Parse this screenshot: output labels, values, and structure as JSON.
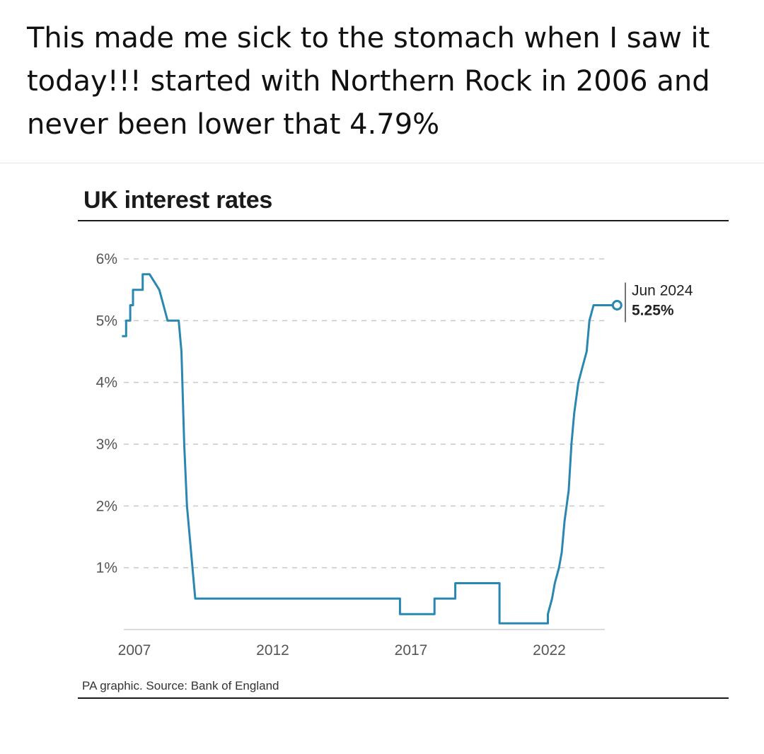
{
  "post": {
    "text": "This made me sick to the stomach when I saw it today!!! started with Northern Rock in 2006 and never been lower that 4.79%"
  },
  "chart_data": {
    "type": "line",
    "title": "UK interest rates",
    "source": "PA graphic. Source: Bank of England",
    "xlabel": "",
    "ylabel": "",
    "xlim": [
      2006.5,
      2024.9
    ],
    "ylim": [
      0,
      6
    ],
    "x_ticks": [
      {
        "value": 2007,
        "label": "2007"
      },
      {
        "value": 2012,
        "label": "2012"
      },
      {
        "value": 2017,
        "label": "2017"
      },
      {
        "value": 2022,
        "label": "2022"
      }
    ],
    "y_ticks": [
      {
        "value": 1,
        "label": "1%"
      },
      {
        "value": 2,
        "label": "2%"
      },
      {
        "value": 3,
        "label": "3%"
      },
      {
        "value": 4,
        "label": "4%"
      },
      {
        "value": 5,
        "label": "5%"
      },
      {
        "value": 6,
        "label": "6%"
      }
    ],
    "grid": "horizontal-dashed",
    "line_color": "#2a87b2",
    "series": [
      {
        "name": "",
        "points": [
          [
            2006.55,
            4.75
          ],
          [
            2006.7,
            4.75
          ],
          [
            2006.7,
            5.0
          ],
          [
            2006.85,
            5.0
          ],
          [
            2006.85,
            5.25
          ],
          [
            2006.95,
            5.25
          ],
          [
            2006.95,
            5.5
          ],
          [
            2007.3,
            5.5
          ],
          [
            2007.3,
            5.75
          ],
          [
            2007.55,
            5.75
          ],
          [
            2007.9,
            5.5
          ],
          [
            2008.05,
            5.25
          ],
          [
            2008.2,
            5.0
          ],
          [
            2008.6,
            5.0
          ],
          [
            2008.7,
            4.5
          ],
          [
            2008.8,
            3.0
          ],
          [
            2008.9,
            2.0
          ],
          [
            2009.0,
            1.5
          ],
          [
            2009.1,
            1.0
          ],
          [
            2009.2,
            0.5
          ],
          [
            2016.6,
            0.5
          ],
          [
            2016.6,
            0.25
          ],
          [
            2017.85,
            0.25
          ],
          [
            2017.85,
            0.5
          ],
          [
            2018.6,
            0.5
          ],
          [
            2018.6,
            0.75
          ],
          [
            2020.2,
            0.75
          ],
          [
            2020.2,
            0.1
          ],
          [
            2021.95,
            0.1
          ],
          [
            2021.95,
            0.25
          ],
          [
            2022.1,
            0.5
          ],
          [
            2022.2,
            0.75
          ],
          [
            2022.35,
            1.0
          ],
          [
            2022.45,
            1.25
          ],
          [
            2022.55,
            1.75
          ],
          [
            2022.7,
            2.25
          ],
          [
            2022.8,
            3.0
          ],
          [
            2022.9,
            3.5
          ],
          [
            2023.05,
            4.0
          ],
          [
            2023.2,
            4.25
          ],
          [
            2023.35,
            4.5
          ],
          [
            2023.45,
            5.0
          ],
          [
            2023.6,
            5.25
          ],
          [
            2024.45,
            5.25
          ]
        ]
      }
    ],
    "annotation": {
      "x": 2024.45,
      "y": 5.25,
      "date_label": "Jun 2024",
      "value_label": "5.25%"
    }
  }
}
